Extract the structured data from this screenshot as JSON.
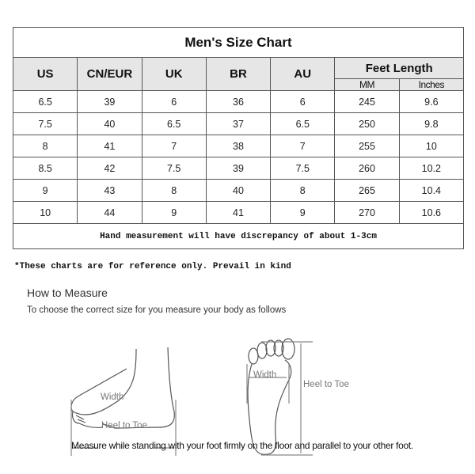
{
  "table": {
    "title": "Men's Size Chart",
    "headers": [
      "US",
      "CN/EUR",
      "UK",
      "BR",
      "AU"
    ],
    "feet_length": {
      "label": "Feet Length",
      "sub": [
        "MM",
        "Inches"
      ]
    },
    "rows": [
      [
        "6.5",
        "39",
        "6",
        "36",
        "6",
        "245",
        "9.6"
      ],
      [
        "7.5",
        "40",
        "6.5",
        "37",
        "6.5",
        "250",
        "9.8"
      ],
      [
        "8",
        "41",
        "7",
        "38",
        "7",
        "255",
        "10"
      ],
      [
        "8.5",
        "42",
        "7.5",
        "39",
        "7.5",
        "260",
        "10.2"
      ],
      [
        "9",
        "43",
        "8",
        "40",
        "8",
        "265",
        "10.4"
      ],
      [
        "10",
        "44",
        "9",
        "41",
        "9",
        "270",
        "10.6"
      ]
    ],
    "footer": "Hand measurement will have discrepancy of about 1-3cm"
  },
  "note": "*These charts are for reference only. Prevail in kind",
  "measure": {
    "title": "How to Measure",
    "subtitle": "To choose the correct size for you measure your body as follows",
    "side_width": "Width",
    "side_length": "Heel to Toe",
    "sole_width": "Width",
    "sole_length": "Heel to Toe",
    "caption": "Measure while standing with your foot firmly on the floor and parallel to your other foot."
  }
}
